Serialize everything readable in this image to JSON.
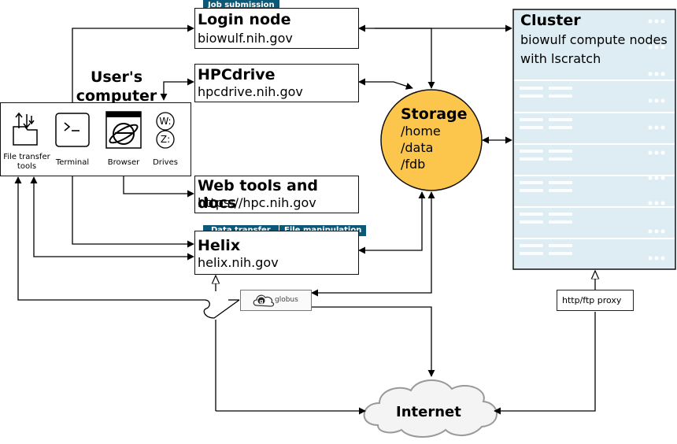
{
  "user_computer": {
    "title_line1": "User's",
    "title_line2": "computer",
    "tools": [
      {
        "label_line1": "File transfer",
        "label_line2": "tools",
        "icon": "file-transfer-icon"
      },
      {
        "label_line1": "Terminal",
        "label_line2": "",
        "icon": "terminal-icon"
      },
      {
        "label_line1": "Browser",
        "label_line2": "",
        "icon": "browser-icon"
      },
      {
        "label_line1": "Drives",
        "label_line2": "",
        "icon": "drives-icon"
      }
    ],
    "drive_letters": [
      "W:",
      "Z:"
    ]
  },
  "login_node": {
    "tag": "Job submission",
    "title": "Login node",
    "host": "biowulf.nih.gov"
  },
  "hpcdrive": {
    "title": "HPCdrive",
    "host": "hpcdrive.nih.gov"
  },
  "web_tools": {
    "title": "Web tools and docs",
    "host": "https://hpc.nih.gov"
  },
  "helix": {
    "tags": [
      "Data transfer",
      "File manipulation"
    ],
    "title": "Helix",
    "host": "helix.nih.gov"
  },
  "storage": {
    "title": "Storage",
    "paths": [
      "/home",
      "/data",
      "/fdb"
    ]
  },
  "cluster": {
    "title": "Cluster",
    "line1": "biowulf compute nodes",
    "line2": "with lscratch"
  },
  "globus": {
    "label": "globus"
  },
  "proxy": {
    "label": "http/ftp proxy"
  },
  "internet": {
    "label": "Internet"
  },
  "colors": {
    "tag": "#0b5877",
    "storage": "#fcc64c",
    "cluster": "#deedf3",
    "cloud": "#f4f4f4"
  }
}
